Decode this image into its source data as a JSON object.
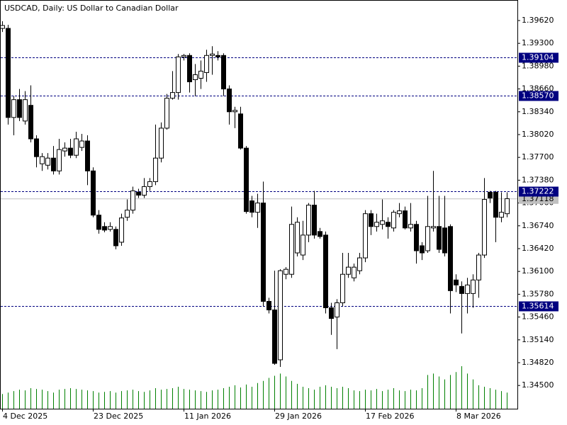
{
  "chart_data": {
    "type": "candlestick",
    "title": "USDCAD, Daily:  US Dollar to Canadian Dollar",
    "categories": [
      "4 Dec 2025",
      null,
      null,
      null,
      null,
      null,
      null,
      null,
      null,
      null,
      null,
      null,
      null,
      null,
      null,
      null,
      "23 Dec 2025",
      null,
      null,
      null,
      null,
      null,
      null,
      null,
      null,
      null,
      null,
      null,
      null,
      null,
      null,
      null,
      "11 Jan 2026",
      null,
      null,
      null,
      null,
      null,
      null,
      null,
      null,
      null,
      null,
      null,
      null,
      null,
      null,
      null,
      "29 Jan 2026",
      null,
      null,
      null,
      null,
      null,
      null,
      null,
      null,
      null,
      null,
      null,
      null,
      null,
      null,
      null,
      "17 Feb 2026",
      null,
      null,
      null,
      null,
      null,
      null,
      null,
      null,
      null,
      null,
      null,
      null,
      null,
      null,
      null,
      "8 Mar 2026",
      null,
      null,
      null,
      null,
      null,
      null,
      null,
      null,
      null
    ],
    "open": [
      1.3951,
      1.3951,
      1.3826,
      1.3851,
      1.3821,
      1.3843,
      1.3796,
      1.3761,
      1.3759,
      1.3769,
      1.3751,
      1.3779,
      1.3783,
      1.3773,
      1.3784,
      1.3793,
      1.3751,
      1.3689,
      1.3673,
      1.3669,
      1.3669,
      1.3651,
      1.3686,
      1.3696,
      1.3721,
      1.3717,
      1.3729,
      1.3736,
      1.3769,
      1.3811,
      1.3853,
      1.3861,
      1.3911,
      1.3913,
      1.3879,
      1.3881,
      1.3889,
      1.3913,
      1.3913,
      1.3913,
      1.3866,
      1.3834,
      1.3831,
      1.3783,
      1.3709,
      1.3693,
      1.3706,
      1.3568,
      1.3556,
      1.3486,
      1.3606,
      1.3606,
      1.3636,
      1.3633,
      1.3661,
      1.3703,
      1.3666,
      1.3661,
      1.3559,
      1.3546,
      1.3566,
      1.3606,
      1.3601,
      1.3611,
      1.3629,
      1.3691,
      1.3673,
      1.3676,
      1.3679,
      1.3671,
      1.3691,
      1.3695,
      1.3671,
      1.3676,
      1.3646,
      1.3639,
      1.3671,
      1.3673,
      1.3671,
      1.3673,
      1.3598,
      1.3589,
      1.3579,
      1.3579,
      1.3598,
      1.3633,
      1.3721,
      1.3721,
      1.3686,
      1.3691
    ],
    "high": [
      1.3961,
      1.3956,
      1.3856,
      1.3866,
      1.3863,
      1.3871,
      1.3801,
      1.3776,
      1.3776,
      1.3786,
      1.3796,
      1.3791,
      1.3796,
      1.3806,
      1.3803,
      1.3801,
      1.3756,
      1.3696,
      1.3679,
      1.3679,
      1.3673,
      1.3691,
      1.3711,
      1.3729,
      1.3726,
      1.3741,
      1.3741,
      1.3816,
      1.3819,
      1.3859,
      1.3891,
      1.3915,
      1.3915,
      1.3916,
      1.3901,
      1.3906,
      1.3921,
      1.3926,
      1.3919,
      1.3916,
      1.3871,
      1.3841,
      1.3841,
      1.3786,
      1.3716,
      1.3719,
      1.3736,
      1.3573,
      1.3611,
      1.3613,
      1.3616,
      1.3701,
      1.3686,
      1.3681,
      1.3706,
      1.3723,
      1.3671,
      1.3666,
      1.3566,
      1.3571,
      1.3636,
      1.3636,
      1.3621,
      1.3636,
      1.3696,
      1.3696,
      1.3691,
      1.3711,
      1.3686,
      1.3696,
      1.3706,
      1.3701,
      1.3706,
      1.3681,
      1.3651,
      1.3716,
      1.3751,
      1.3716,
      1.3716,
      1.3676,
      1.3606,
      1.3596,
      1.3601,
      1.3606,
      1.3636,
      1.3741,
      1.3723,
      1.3723,
      1.3721,
      1.3721
    ],
    "low": [
      1.3946,
      1.3816,
      1.3801,
      1.3821,
      1.3816,
      1.3791,
      1.3756,
      1.3751,
      1.3753,
      1.3746,
      1.3746,
      1.3771,
      1.3769,
      1.3769,
      1.3779,
      1.3731,
      1.3686,
      1.3663,
      1.3665,
      1.3666,
      1.3641,
      1.3646,
      1.3681,
      1.3691,
      1.3713,
      1.3713,
      1.3723,
      1.3731,
      1.3763,
      1.3809,
      1.3851,
      1.3851,
      1.3906,
      1.3861,
      1.3856,
      1.3866,
      1.3876,
      1.3886,
      1.3906,
      1.3856,
      1.3816,
      1.3811,
      1.3781,
      1.3691,
      1.3686,
      1.3671,
      1.3561,
      1.3551,
      1.3479,
      1.3476,
      1.3599,
      1.3601,
      1.3631,
      1.3626,
      1.3651,
      1.3656,
      1.3656,
      1.3551,
      1.3521,
      1.3501,
      1.3561,
      1.3601,
      1.3596,
      1.3606,
      1.3623,
      1.3661,
      1.3666,
      1.3669,
      1.3656,
      1.3666,
      1.3686,
      1.3669,
      1.3666,
      1.3621,
      1.3626,
      1.3636,
      1.3666,
      1.3636,
      1.3631,
      1.3551,
      1.3581,
      1.3523,
      1.3551,
      1.3559,
      1.3573,
      1.3629,
      1.3706,
      1.3651,
      1.3679,
      1.3686
    ],
    "close": [
      1.3955,
      1.3826,
      1.3851,
      1.3826,
      1.3851,
      1.3796,
      1.3771,
      1.3771,
      1.3769,
      1.3751,
      1.3781,
      1.3783,
      1.3773,
      1.3796,
      1.3793,
      1.3751,
      1.3689,
      1.3669,
      1.3668,
      1.3673,
      1.3646,
      1.3685,
      1.3696,
      1.3723,
      1.3717,
      1.3729,
      1.3736,
      1.3769,
      1.3811,
      1.3853,
      1.3861,
      1.3911,
      1.3913,
      1.3876,
      1.3886,
      1.3891,
      1.3913,
      1.3915,
      1.3911,
      1.3866,
      1.3834,
      1.3836,
      1.3783,
      1.3694,
      1.3693,
      1.3706,
      1.3568,
      1.3556,
      1.3481,
      1.3611,
      1.3613,
      1.3676,
      1.3679,
      1.3661,
      1.3703,
      1.3661,
      1.3659,
      1.3559,
      1.3544,
      1.3566,
      1.3606,
      1.3616,
      1.3616,
      1.3629,
      1.3691,
      1.3673,
      1.3679,
      1.3681,
      1.3673,
      1.3693,
      1.3695,
      1.3671,
      1.3676,
      1.3639,
      1.3636,
      1.3673,
      1.3673,
      1.3641,
      1.3636,
      1.3583,
      1.3591,
      1.3579,
      1.3591,
      1.3598,
      1.3633,
      1.3711,
      1.3713,
      1.3686,
      1.3693,
      1.3712
    ],
    "volume": [
      20,
      22,
      24,
      26,
      25,
      28,
      27,
      26,
      24,
      22,
      26,
      27,
      28,
      27,
      26,
      25,
      24,
      22,
      23,
      24,
      22,
      24,
      25,
      26,
      24,
      23,
      25,
      28,
      26,
      27,
      28,
      30,
      27,
      26,
      25,
      24,
      23,
      25,
      26,
      28,
      30,
      32,
      29,
      33,
      30,
      35,
      38,
      42,
      45,
      48,
      44,
      38,
      34,
      30,
      28,
      26,
      30,
      32,
      30,
      28,
      30,
      28,
      25,
      24,
      26,
      25,
      27,
      24,
      26,
      28,
      25,
      24,
      26,
      25,
      28,
      46,
      48,
      44,
      40,
      46,
      50,
      58,
      48,
      40,
      32,
      30,
      28,
      26,
      24,
      22
    ],
    "ylim": [
      1.34174,
      1.39908
    ],
    "yticks": [
      {
        "value": 1.3962,
        "label": "1.39620"
      },
      {
        "value": 1.393,
        "label": "1.39300"
      },
      {
        "value": 1.3898,
        "label": "1.38980"
      },
      {
        "value": 1.3866,
        "label": "1.38660"
      },
      {
        "value": 1.3834,
        "label": "1.38340"
      },
      {
        "value": 1.3802,
        "label": "1.38020"
      },
      {
        "value": 1.377,
        "label": "1.37700"
      },
      {
        "value": 1.3738,
        "label": "1.37380"
      },
      {
        "value": 1.3706,
        "label": "1.37060"
      },
      {
        "value": 1.3674,
        "label": "1.36740"
      },
      {
        "value": 1.3642,
        "label": "1.36420"
      },
      {
        "value": 1.361,
        "label": "1.36100"
      },
      {
        "value": 1.3578,
        "label": "1.35780"
      },
      {
        "value": 1.3546,
        "label": "1.35460"
      },
      {
        "value": 1.3514,
        "label": "1.35140"
      },
      {
        "value": 1.3482,
        "label": "1.34820"
      },
      {
        "value": 1.345,
        "label": "1.34500"
      }
    ],
    "bid_line": 1.37118,
    "levels": [
      1.39104,
      {
        "value": 1.3857,
        "label": "1.38570"
      },
      1.37222,
      1.35614
    ],
    "up_color": "#ffffff",
    "down_color": "#000000",
    "volume_color": "#008000",
    "level_color": "#000080"
  }
}
